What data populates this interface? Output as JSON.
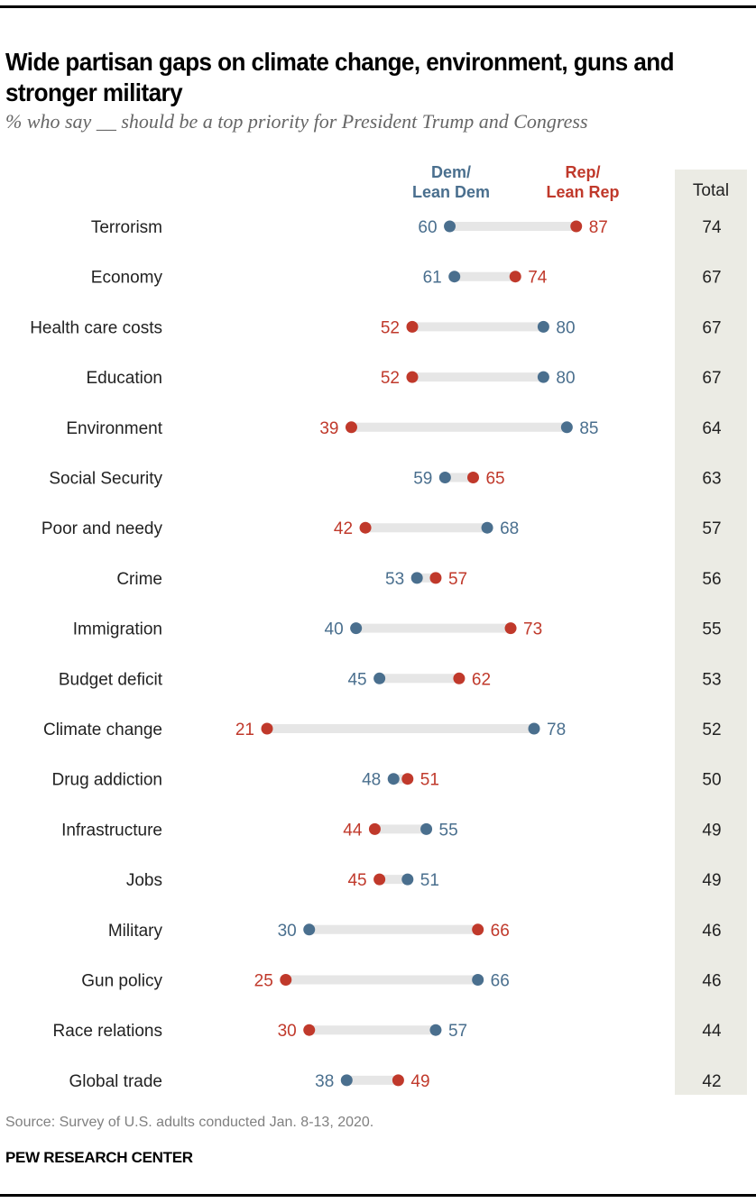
{
  "chart_data": {
    "type": "dumbbell",
    "title": "Wide partisan gaps on climate change, environment, guns and stronger military",
    "subtitle": "% who say __ should be a top priority for President Trump and Congress",
    "legend": {
      "dem": "Dem/\nLean Dem",
      "dem_line1": "Dem/",
      "dem_line2": "Lean Dem",
      "rep_line1": "Rep/",
      "rep_line2": "Lean Rep"
    },
    "total_header": "Total",
    "colors": {
      "dem": "#4a6f8e",
      "rep": "#c0392b",
      "bar": "#e6e6e6",
      "total_bg": "#ebebe4"
    },
    "categories": [
      "Terrorism",
      "Economy",
      "Health care costs",
      "Education",
      "Environment",
      "Social Security",
      "Poor and needy",
      "Crime",
      "Immigration",
      "Budget deficit",
      "Climate change",
      "Drug addiction",
      "Infrastructure",
      "Jobs",
      "Military",
      "Gun policy",
      "Race relations",
      "Global trade"
    ],
    "series": [
      {
        "name": "Dem/Lean Dem",
        "values": [
          60,
          61,
          80,
          80,
          85,
          59,
          68,
          53,
          40,
          45,
          78,
          48,
          55,
          51,
          30,
          66,
          57,
          38
        ]
      },
      {
        "name": "Rep/Lean Rep",
        "values": [
          87,
          74,
          52,
          52,
          39,
          65,
          42,
          57,
          73,
          62,
          21,
          51,
          44,
          45,
          66,
          25,
          30,
          49
        ]
      },
      {
        "name": "Total",
        "values": [
          74,
          67,
          67,
          67,
          64,
          63,
          57,
          56,
          55,
          53,
          52,
          50,
          49,
          49,
          46,
          46,
          44,
          42
        ]
      }
    ],
    "xlim": [
      0,
      100
    ],
    "unit": "%"
  },
  "footer": {
    "source": "Source: Survey of U.S. adults conducted Jan. 8-13, 2020.",
    "brand": "PEW RESEARCH CENTER"
  }
}
